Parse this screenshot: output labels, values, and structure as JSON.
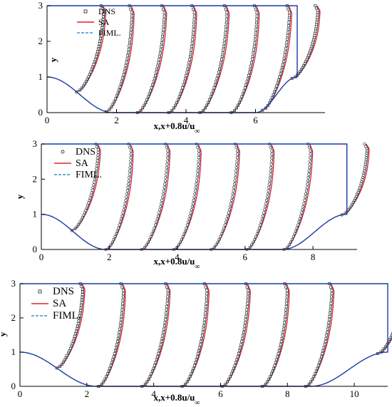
{
  "page": {
    "background": "#ffffff",
    "hill_color": "#1a3aa8",
    "dns_color": "#333333",
    "sa_color": "#e0202a",
    "fiml_color": "#3a8fd6"
  },
  "chart_data": [
    {
      "type": "line",
      "xlabel": "x,x+0.8u/u",
      "xlabel_sub": "∞",
      "ylabel": "y",
      "xlim": [
        0,
        8.0
      ],
      "ylim": [
        0,
        3
      ],
      "xticks": [
        0,
        2,
        4,
        6
      ],
      "yticks": [
        0,
        1,
        2,
        3
      ],
      "grid": false,
      "legend_position": "top-left",
      "series": [
        {
          "name": "DNS",
          "style": "open-square markers",
          "color": "#333333"
        },
        {
          "name": "SA",
          "style": "solid line",
          "color": "#e0202a"
        },
        {
          "name": "FIML.",
          "style": "dashed line",
          "color": "#3a8fd6"
        }
      ],
      "geometry": {
        "crest_start": 0.0,
        "hill_end": 1.9,
        "hill_start": 6.0,
        "crest_end": 7.2
      },
      "profile_stations": [
        0.85,
        1.7,
        2.6,
        3.5,
        4.4,
        5.3,
        6.2,
        7.05
      ]
    },
    {
      "type": "line",
      "xlabel": "x,x+0.8u/u",
      "xlabel_sub": "∞",
      "ylabel": "y",
      "xlim": [
        0,
        9.3
      ],
      "ylim": [
        0,
        3
      ],
      "xticks": [
        0,
        2,
        4,
        6,
        8
      ],
      "yticks": [
        0,
        1,
        2,
        3
      ],
      "grid": false,
      "legend_position": "top-left",
      "series": [
        {
          "name": "DNS",
          "style": "open-circle markers",
          "color": "#333333"
        },
        {
          "name": "SA",
          "style": "solid line",
          "color": "#e0202a"
        },
        {
          "name": "FIML.",
          "style": "dashed line",
          "color": "#3a8fd6"
        }
      ],
      "geometry": {
        "crest_start": 0.0,
        "hill_end": 1.9,
        "hill_start": 7.1,
        "crest_end": 9.0
      },
      "profile_stations": [
        0.9,
        1.9,
        2.95,
        3.9,
        5.0,
        6.05,
        7.15,
        8.85
      ]
    },
    {
      "type": "line",
      "xlabel": "x,x+0.8u/u",
      "xlabel_sub": "∞",
      "ylabel": "y",
      "xlim": [
        0,
        11.0
      ],
      "ylim": [
        0,
        3
      ],
      "xticks": [
        0,
        2,
        4,
        6,
        8,
        10
      ],
      "yticks": [
        0,
        1,
        2,
        3
      ],
      "grid": false,
      "legend_position": "top-left",
      "series": [
        {
          "name": "DNS",
          "style": "open-square markers",
          "color": "#333333"
        },
        {
          "name": "SA",
          "style": "solid line",
          "color": "#e0202a"
        },
        {
          "name": "FIML.",
          "style": "dashed line",
          "color": "#3a8fd6"
        }
      ],
      "geometry": {
        "crest_start": 0.0,
        "hill_end": 2.3,
        "hill_start": 8.7,
        "crest_end": 11.0
      },
      "profile_stations": [
        1.1,
        2.35,
        3.65,
        4.85,
        6.05,
        7.25,
        8.55,
        10.7
      ]
    }
  ]
}
